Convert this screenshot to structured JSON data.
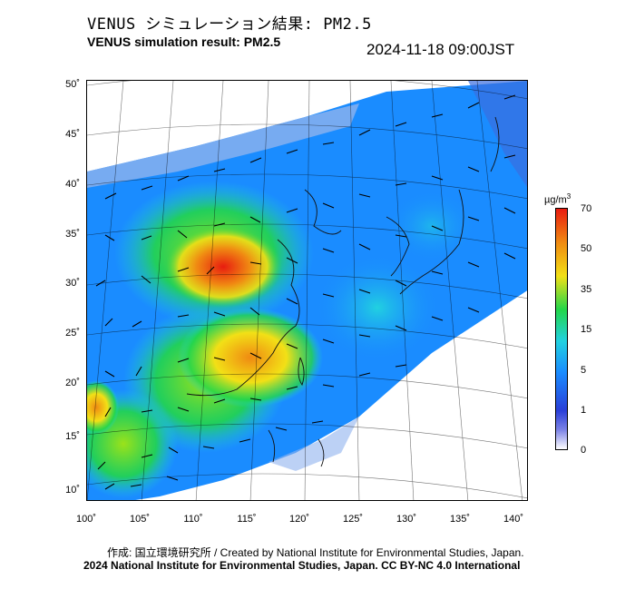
{
  "header": {
    "title_jp": "VENUS シミュレーション結果: PM2.5",
    "title_en": "VENUS simulation result: PM2.5",
    "timestamp": "2024-11-18 09:00JST"
  },
  "axes": {
    "lat_labels": [
      "50˚",
      "45˚",
      "40˚",
      "35˚",
      "30˚",
      "25˚",
      "20˚",
      "15˚",
      "10˚"
    ],
    "lon_labels": [
      "100˚",
      "105˚",
      "110˚",
      "115˚",
      "120˚",
      "125˚",
      "130˚",
      "135˚",
      "140˚"
    ]
  },
  "colorbar": {
    "unit_base": "µg/m",
    "unit_sup": "3",
    "ticks": [
      "70",
      "50",
      "35",
      "15",
      "5",
      "1",
      "0"
    ],
    "colors": [
      "#ffffff",
      "#2a3fd8",
      "#1a8cff",
      "#21d1e0",
      "#22d64a",
      "#f2e016",
      "#f08a12",
      "#e81c10"
    ]
  },
  "footer": {
    "credit": "作成: 国立環境研究所 / Created by National Institute for Environmental Studies, Japan.",
    "copyright": "2024 National Institute for Environmental Studies, Japan. CC BY-NC 4.0 International"
  }
}
